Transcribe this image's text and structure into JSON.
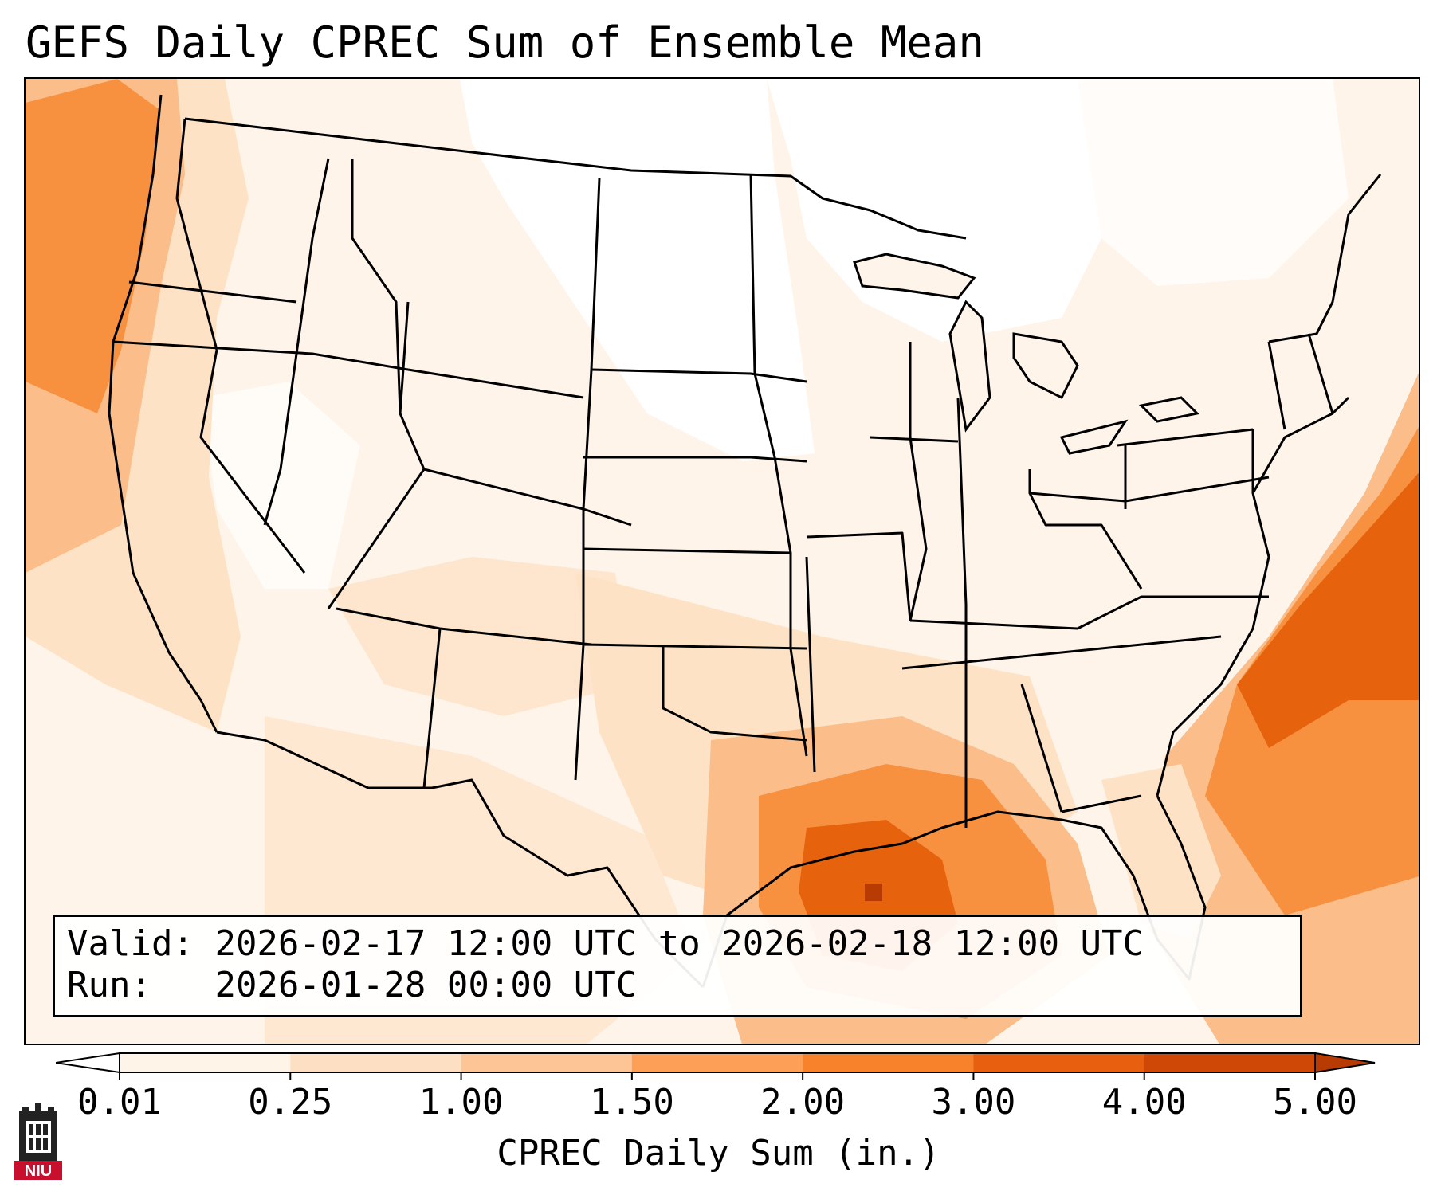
{
  "title": "GEFS Daily CPREC Sum of Ensemble Mean",
  "info": {
    "valid_label": "Valid:",
    "valid_value": "2026-02-17 12:00 UTC to 2026-02-18 12:00 UTC",
    "run_label": "Run:",
    "run_value": "2026-01-28 00:00 UTC"
  },
  "colorbar": {
    "label": "CPREC Daily Sum (in.)",
    "ticks": [
      "0.01",
      "0.25",
      "1.00",
      "1.50",
      "2.00",
      "3.00",
      "4.00",
      "5.00"
    ],
    "colors": [
      "#fff4e8",
      "#fde0c4",
      "#fdc495",
      "#fd9f56",
      "#f8812c",
      "#e8600f",
      "#cf4806"
    ],
    "extend": "both"
  },
  "logo": {
    "text": "NIU",
    "colors": {
      "red": "#c8102e",
      "dark": "#222222"
    }
  },
  "map": {
    "region": "CONUS",
    "feature_colors": {
      "background": "#fef4ea",
      "dry": "#ffffff",
      "light": "#fde2c6",
      "moderate": "#fbbe8a",
      "heavy": "#f8913f",
      "very_heavy": "#e6620d",
      "extreme": "#b83b04",
      "borders": "#000000"
    }
  }
}
